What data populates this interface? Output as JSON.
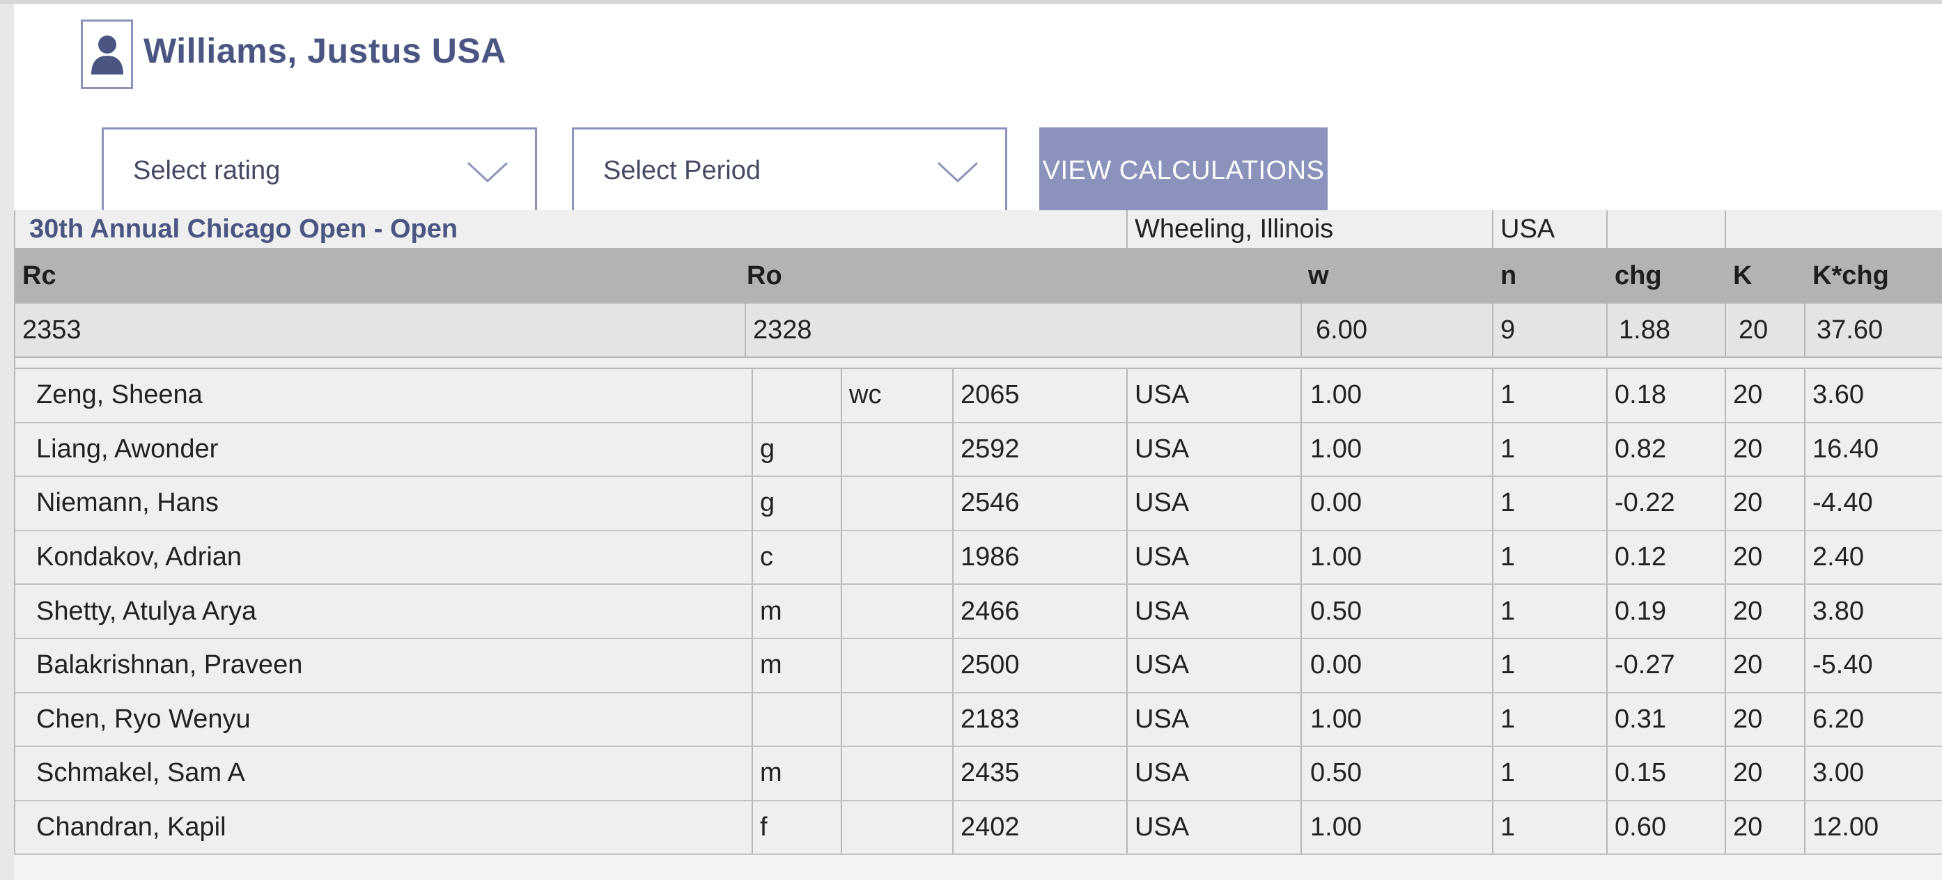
{
  "player": {
    "name": "Williams, Justus USA"
  },
  "controls": {
    "rating_select": "Select rating",
    "period_select": "Select Period",
    "view_button": "VIEW CALCULATIONS"
  },
  "event": {
    "title": "30th Annual Chicago Open - Open",
    "location": "Wheeling, Illinois",
    "country": "USA"
  },
  "headers": {
    "rc": "Rc",
    "ro": "Ro",
    "w": "w",
    "n": "n",
    "chg": "chg",
    "k": "K",
    "kchg": "K*chg"
  },
  "summary": {
    "rc": "2353",
    "ro": "2328",
    "w": "6.00",
    "n": "9",
    "chg": "1.88",
    "k": "20",
    "kchg": "37.60"
  },
  "games": [
    {
      "name": "Zeng, Sheena",
      "title": "",
      "wt": "wc",
      "rating": "2065",
      "fed": "USA",
      "w": "1.00",
      "n": "1",
      "chg": "0.18",
      "k": "20",
      "kchg": "3.60"
    },
    {
      "name": "Liang, Awonder",
      "title": "g",
      "wt": "",
      "rating": "2592",
      "fed": "USA",
      "w": "1.00",
      "n": "1",
      "chg": "0.82",
      "k": "20",
      "kchg": "16.40"
    },
    {
      "name": "Niemann, Hans",
      "title": "g",
      "wt": "",
      "rating": "2546",
      "fed": "USA",
      "w": "0.00",
      "n": "1",
      "chg": "-0.22",
      "k": "20",
      "kchg": "-4.40"
    },
    {
      "name": "Kondakov, Adrian",
      "title": "c",
      "wt": "",
      "rating": "1986",
      "fed": "USA",
      "w": "1.00",
      "n": "1",
      "chg": "0.12",
      "k": "20",
      "kchg": "2.40"
    },
    {
      "name": "Shetty, Atulya Arya",
      "title": "m",
      "wt": "",
      "rating": "2466",
      "fed": "USA",
      "w": "0.50",
      "n": "1",
      "chg": "0.19",
      "k": "20",
      "kchg": "3.80"
    },
    {
      "name": "Balakrishnan, Praveen",
      "title": "m",
      "wt": "",
      "rating": "2500",
      "fed": "USA",
      "w": "0.00",
      "n": "1",
      "chg": "-0.27",
      "k": "20",
      "kchg": "-5.40"
    },
    {
      "name": "Chen, Ryo Wenyu",
      "title": "",
      "wt": "",
      "rating": "2183",
      "fed": "USA",
      "w": "1.00",
      "n": "1",
      "chg": "0.31",
      "k": "20",
      "kchg": "6.20"
    },
    {
      "name": "Schmakel, Sam A",
      "title": "m",
      "wt": "",
      "rating": "2435",
      "fed": "USA",
      "w": "0.50",
      "n": "1",
      "chg": "0.15",
      "k": "20",
      "kchg": "3.00"
    },
    {
      "name": "Chandran, Kapil",
      "title": "f",
      "wt": "",
      "rating": "2402",
      "fed": "USA",
      "w": "1.00",
      "n": "1",
      "chg": "0.60",
      "k": "20",
      "kchg": "12.00"
    }
  ]
}
